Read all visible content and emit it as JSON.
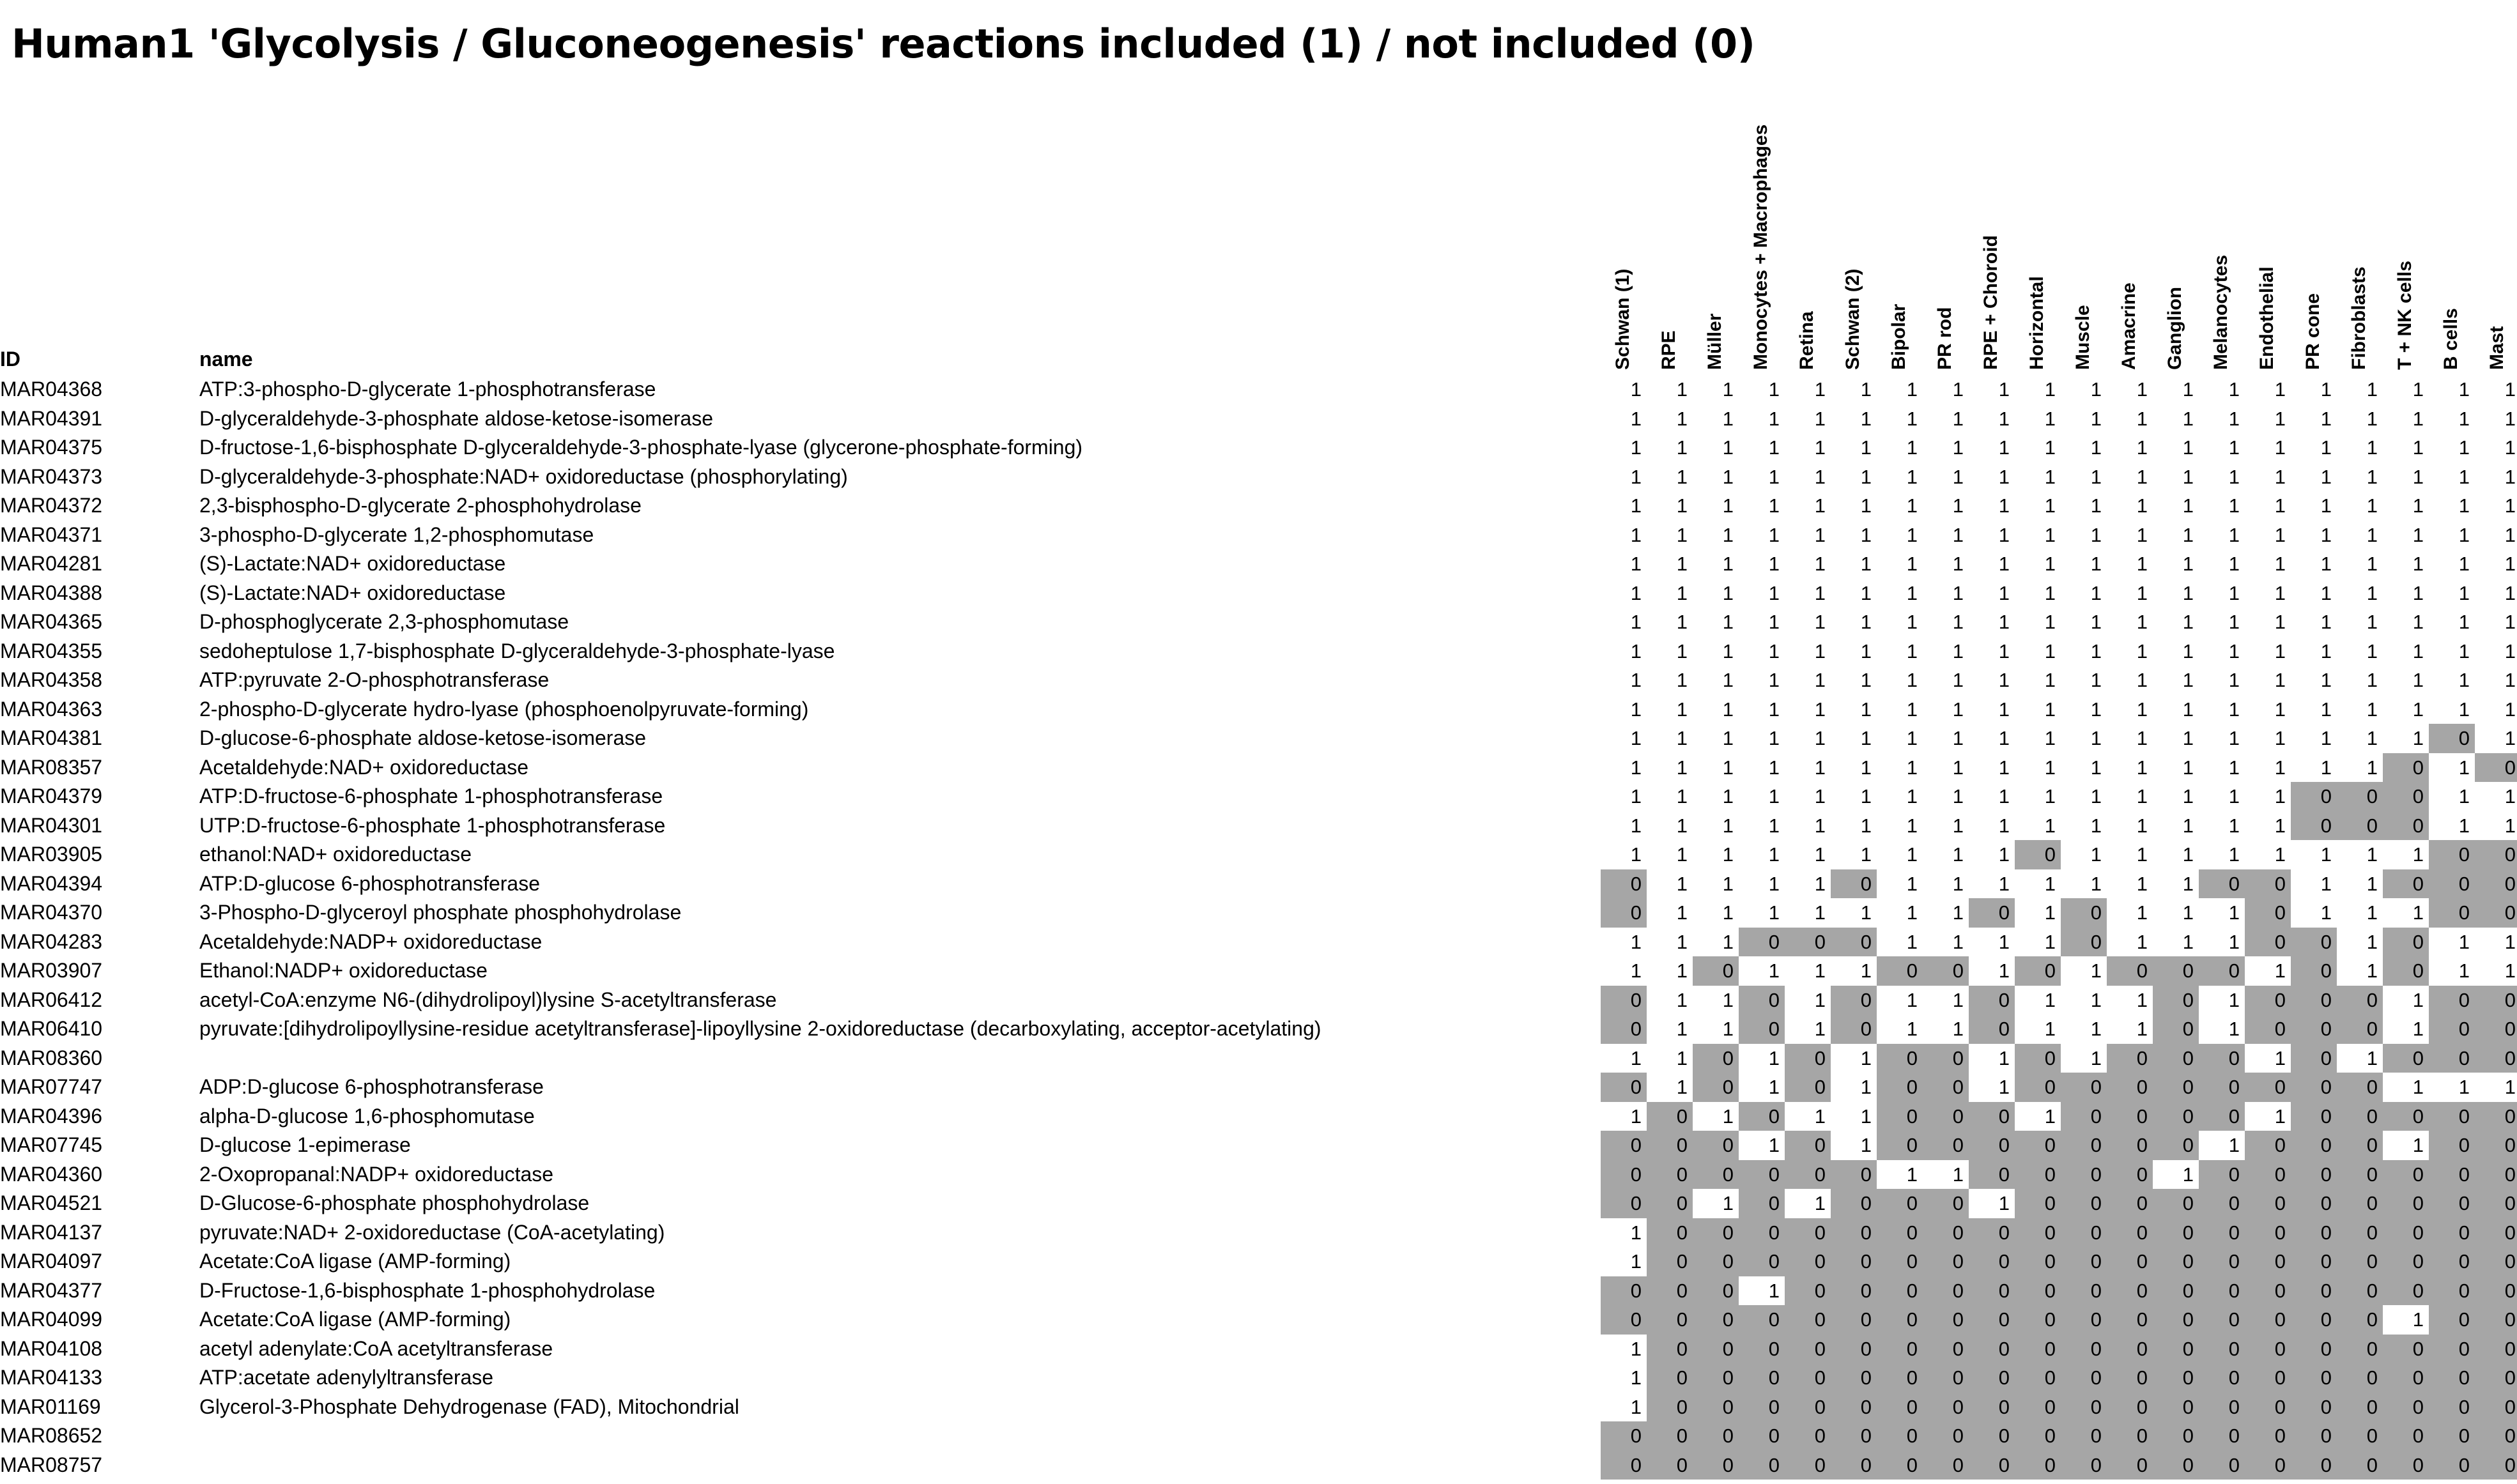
{
  "title": "Human1 'Glycolysis / Gluconeogenesis'  reactions included (1) / not included (0)",
  "headers": {
    "id": "ID",
    "name": "name"
  },
  "cell_colors": {
    "included": "#ffffff",
    "not_included": "#a6a6a6"
  },
  "columns": [
    "Schwan (1)",
    "RPE",
    "Müller",
    "Monocytes + Macrophages",
    "Retina",
    "Schwan (2)",
    "Bipolar",
    "PR rod",
    "RPE + Choroid",
    "Horizontal",
    "Muscle",
    "Amacrine",
    "Ganglion",
    "Melanocytes",
    "Endothelial",
    "PR cone",
    "Fibroblasts",
    "T + NK cells",
    "B cells",
    "Mast"
  ],
  "rows": [
    {
      "id": "MAR04368",
      "name": "ATP:3-phospho-D-glycerate 1-phosphotransferase",
      "values": "11111111111111111111"
    },
    {
      "id": "MAR04391",
      "name": "D-glyceraldehyde-3-phosphate aldose-ketose-isomerase",
      "values": "11111111111111111111"
    },
    {
      "id": "MAR04375",
      "name": "D-fructose-1,6-bisphosphate D-glyceraldehyde-3-phosphate-lyase (glycerone-phosphate-forming)",
      "values": "11111111111111111111"
    },
    {
      "id": "MAR04373",
      "name": "D-glyceraldehyde-3-phosphate:NAD+ oxidoreductase (phosphorylating)",
      "values": "11111111111111111111"
    },
    {
      "id": "MAR04372",
      "name": "2,3-bisphospho-D-glycerate 2-phosphohydrolase",
      "values": "11111111111111111111"
    },
    {
      "id": "MAR04371",
      "name": "3-phospho-D-glycerate 1,2-phosphomutase",
      "values": "11111111111111111111"
    },
    {
      "id": "MAR04281",
      "name": "(S)-Lactate:NAD+ oxidoreductase",
      "values": "11111111111111111111"
    },
    {
      "id": "MAR04388",
      "name": "(S)-Lactate:NAD+ oxidoreductase",
      "values": "11111111111111111111"
    },
    {
      "id": "MAR04365",
      "name": "D-phosphoglycerate 2,3-phosphomutase",
      "values": "11111111111111111111"
    },
    {
      "id": "MAR04355",
      "name": "sedoheptulose 1,7-bisphosphate D-glyceraldehyde-3-phosphate-lyase",
      "values": "11111111111111111111"
    },
    {
      "id": "MAR04358",
      "name": "ATP:pyruvate 2-O-phosphotransferase",
      "values": "11111111111111111111"
    },
    {
      "id": "MAR04363",
      "name": "2-phospho-D-glycerate hydro-lyase (phosphoenolpyruvate-forming)",
      "values": "11111111111111111111"
    },
    {
      "id": "MAR04381",
      "name": "D-glucose-6-phosphate aldose-ketose-isomerase",
      "values": "11111111111111111101"
    },
    {
      "id": "MAR08357",
      "name": "Acetaldehyde:NAD+ oxidoreductase",
      "values": "11111111111111111010"
    },
    {
      "id": "MAR04379",
      "name": "ATP:D-fructose-6-phosphate 1-phosphotransferase",
      "values": "11111111111111100011"
    },
    {
      "id": "MAR04301",
      "name": "UTP:D-fructose-6-phosphate 1-phosphotransferase",
      "values": "11111111111111100011"
    },
    {
      "id": "MAR03905",
      "name": "ethanol:NAD+ oxidoreductase",
      "values": "11111111101111111100"
    },
    {
      "id": "MAR04394",
      "name": "ATP:D-glucose 6-phosphotransferase",
      "values": "01111011111110011000"
    },
    {
      "id": "MAR04370",
      "name": "3-Phospho-D-glyceroyl phosphate phosphohydrolase",
      "values": "01111111010111011100"
    },
    {
      "id": "MAR04283",
      "name": "Acetaldehyde:NADP+ oxidoreductase",
      "values": "11100011110111001011"
    },
    {
      "id": "MAR03907",
      "name": "Ethanol:NADP+ oxidoreductase",
      "values": "11011100101000101011"
    },
    {
      "id": "MAR06412",
      "name": "acetyl-CoA:enzyme N6-(dihydrolipoyl)lysine S-acetyltransferase",
      "values": "01101011011101000100"
    },
    {
      "id": "MAR06410",
      "name": "pyruvate:[dihydrolipoyllysine-residue acetyltransferase]-lipoyllysine 2-oxidoreductase (decarboxylating, acceptor-acetylating)",
      "values": "01101011011101000100"
    },
    {
      "id": "MAR08360",
      "name": "",
      "values": "11010100101000101000"
    },
    {
      "id": "MAR07747",
      "name": "ADP:D-glucose 6-phosphotransferase",
      "values": "01010100100000000111"
    },
    {
      "id": "MAR04396",
      "name": "alpha-D-glucose 1,6-phosphomutase",
      "values": "10101100010000100000"
    },
    {
      "id": "MAR07745",
      "name": "D-glucose 1-epimerase",
      "values": "00010100000001000100"
    },
    {
      "id": "MAR04360",
      "name": "2-Oxopropanal:NADP+ oxidoreductase",
      "values": "00000011000010000000"
    },
    {
      "id": "MAR04521",
      "name": "D-Glucose-6-phosphate phosphohydrolase",
      "values": "00101000100000000000"
    },
    {
      "id": "MAR04137",
      "name": "pyruvate:NAD+ 2-oxidoreductase (CoA-acetylating)",
      "values": "10000000000000000000"
    },
    {
      "id": "MAR04097",
      "name": "Acetate:CoA ligase (AMP-forming)",
      "values": "10000000000000000000"
    },
    {
      "id": "MAR04377",
      "name": "D-Fructose-1,6-bisphosphate 1-phosphohydrolase",
      "values": "00010000000000000000"
    },
    {
      "id": "MAR04099",
      "name": "Acetate:CoA ligase (AMP-forming)",
      "values": "00000000000000000100"
    },
    {
      "id": "MAR04108",
      "name": "acetyl adenylate:CoA acetyltransferase",
      "values": "10000000000000000000"
    },
    {
      "id": "MAR04133",
      "name": "ATP:acetate adenylyltransferase",
      "values": "10000000000000000000"
    },
    {
      "id": "MAR01169",
      "name": "Glycerol-3-Phosphate Dehydrogenase (FAD), Mitochondrial",
      "values": "10000000000000000000"
    },
    {
      "id": "MAR08652",
      "name": "",
      "values": "00000000000000000000"
    },
    {
      "id": "MAR08757",
      "name": "",
      "values": "00000000000000000000"
    }
  ]
}
